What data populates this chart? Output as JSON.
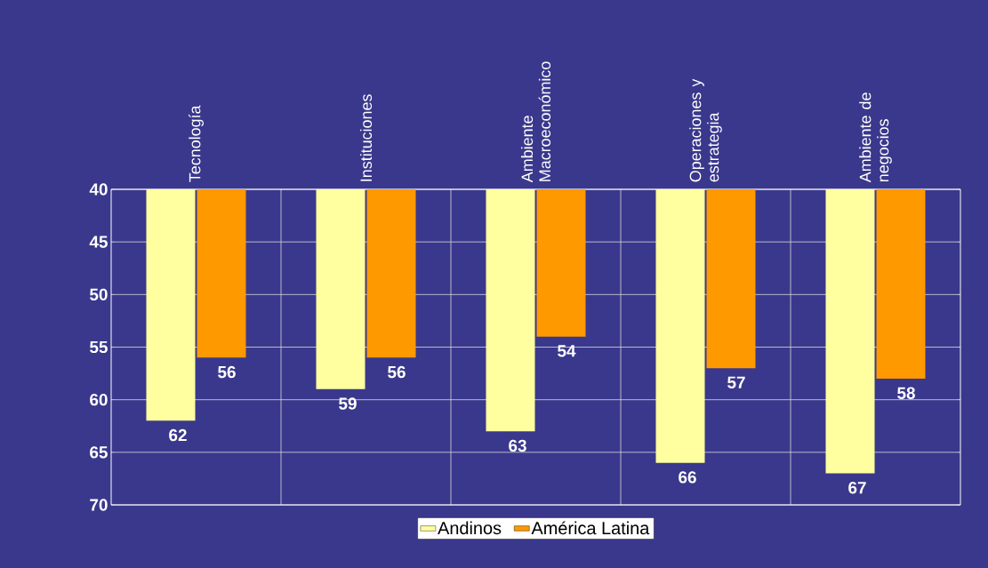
{
  "chart_data": {
    "type": "bar",
    "categories": [
      "Tecnología",
      "Instituciones",
      "Ambiente Macroeconómico",
      "Operaciones y estrategia",
      "Ambiente de negocios"
    ],
    "series": [
      {
        "name": "Andinos",
        "color": "#ffffa0",
        "values": [
          62,
          59,
          63,
          66,
          67
        ]
      },
      {
        "name": "América Latina",
        "color": "#ff9900",
        "values": [
          56,
          56,
          54,
          57,
          58
        ]
      }
    ],
    "ylim": [
      70,
      40
    ],
    "yticks": [
      40,
      45,
      50,
      55,
      60,
      65,
      70
    ],
    "grid": true,
    "legend": "bottom",
    "data_labels": true
  }
}
